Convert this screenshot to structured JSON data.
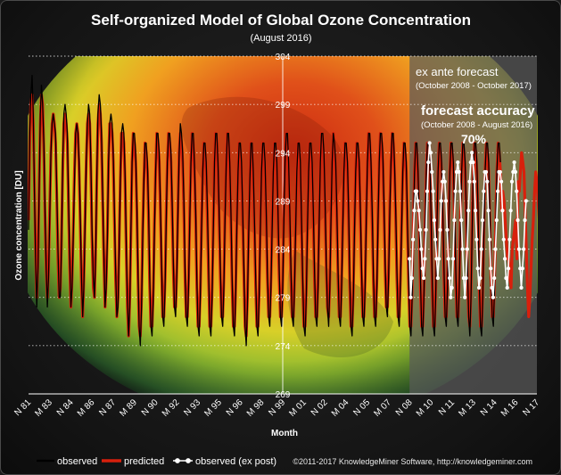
{
  "chart_data": {
    "type": "line",
    "title": "Self-organized Model of Global Ozone Concentration",
    "subtitle": "(August 2016)",
    "xlabel": "Month",
    "ylabel": "Ozone concentration [DU]",
    "ylim": [
      269,
      304
    ],
    "yticks": [
      269,
      274,
      279,
      284,
      289,
      294,
      299,
      304
    ],
    "xlim": [
      1981.85,
      2017.85
    ],
    "x_tick_labels": [
      "N 81",
      "M 83",
      "N 84",
      "M 86",
      "N 87",
      "M 89",
      "N 90",
      "M 92",
      "N 93",
      "M 95",
      "N 96",
      "M 98",
      "N 99",
      "M 01",
      "N 02",
      "M 04",
      "N 05",
      "M 07",
      "N 08",
      "M 10",
      "N 11",
      "M 13",
      "N 14",
      "M 16",
      "N 17"
    ],
    "grid": "horizontal dotted",
    "legend_position": "bottom-left",
    "observed": {
      "name": "observed",
      "color": "#000000",
      "start": 1981.85,
      "step": 0.0833333,
      "values": [
        286,
        296,
        300,
        302,
        298,
        290,
        283,
        278,
        282,
        290,
        298,
        301,
        299,
        295,
        288,
        282,
        278,
        281,
        287,
        294,
        297,
        298,
        297,
        296,
        290,
        284,
        279,
        279,
        284,
        293,
        298,
        299,
        298,
        296,
        289,
        283,
        278,
        280,
        285,
        291,
        296,
        297,
        296,
        293,
        287,
        281,
        277,
        280,
        286,
        293,
        297,
        299,
        298,
        293,
        286,
        281,
        279,
        283,
        291,
        298,
        300,
        299,
        296,
        290,
        284,
        278,
        280,
        285,
        293,
        297,
        298,
        297,
        294,
        288,
        282,
        277,
        278,
        284,
        291,
        296,
        297,
        296,
        292,
        285,
        279,
        275,
        278,
        286,
        293,
        296,
        296,
        294,
        289,
        282,
        276,
        274,
        278,
        285,
        291,
        295,
        295,
        293,
        288,
        281,
        276,
        275,
        279,
        286,
        292,
        296,
        296,
        294,
        289,
        283,
        277,
        276,
        280,
        287,
        293,
        296,
        296,
        294,
        289,
        283,
        278,
        277,
        281,
        288,
        294,
        297,
        296,
        294,
        289,
        282,
        277,
        276,
        280,
        287,
        293,
        296,
        296,
        293,
        288,
        281,
        276,
        275,
        279,
        286,
        292,
        295,
        295,
        293,
        288,
        282,
        276,
        275,
        279,
        286,
        293,
        296,
        296,
        293,
        288,
        282,
        277,
        276,
        280,
        287,
        293,
        296,
        296,
        293,
        288,
        281,
        276,
        275,
        279,
        286,
        292,
        295,
        295,
        293,
        288,
        282,
        276,
        274,
        278,
        285,
        291,
        295,
        295,
        292,
        287,
        281,
        276,
        275,
        279,
        286,
        292,
        295,
        295,
        293,
        288,
        282,
        277,
        276,
        280,
        286,
        292,
        295,
        295,
        293,
        288,
        282,
        277,
        276,
        280,
        287,
        293,
        296,
        296,
        293,
        288,
        282,
        277,
        276,
        280,
        286,
        292,
        295,
        295,
        293,
        287,
        281,
        276,
        275,
        279,
        286,
        292,
        295,
        295,
        293,
        288,
        282,
        277,
        276,
        280,
        287,
        293,
        296,
        296,
        294,
        289,
        283,
        278,
        276,
        280,
        287,
        293,
        296,
        295,
        293,
        288,
        282,
        277,
        276,
        280,
        286,
        292,
        295,
        295,
        293,
        288,
        281,
        276,
        275,
        279,
        286,
        292,
        295,
        295,
        293,
        288,
        282,
        277,
        276,
        280,
        287,
        293,
        296,
        296,
        293,
        288,
        282,
        277,
        276,
        280,
        287,
        293,
        296,
        296,
        294,
        289,
        283,
        278,
        277,
        281,
        288,
        293,
        296,
        296,
        293,
        288,
        282,
        277,
        276,
        280,
        286,
        292,
        295,
        295,
        293,
        287,
        281,
        276,
        275,
        279,
        286,
        292,
        295,
        295,
        292,
        287,
        281,
        276,
        275,
        279,
        286,
        292,
        295,
        295,
        293,
        288,
        281,
        276,
        275,
        279,
        286,
        292,
        295,
        295,
        293,
        288,
        282,
        277,
        276,
        280,
        286,
        292,
        295,
        295,
        293,
        288,
        282,
        277,
        276,
        280,
        286,
        292,
        295,
        295,
        293,
        288,
        282,
        277,
        275,
        279,
        286,
        292,
        295,
        295,
        293,
        288,
        281,
        276,
        275,
        279,
        286,
        292,
        295,
        295,
        293,
        288,
        282,
        277,
        276,
        280,
        286,
        292,
        295,
        295,
        293
      ]
    },
    "predicted": {
      "name": "predicted",
      "color": "#d8200c",
      "start": 1981.85,
      "step": 0.0833333,
      "values": [
        287,
        295,
        299,
        300,
        297,
        291,
        284,
        279,
        283,
        291,
        297,
        300,
        299,
        294,
        287,
        282,
        279,
        282,
        288,
        294,
        297,
        298,
        297,
        295,
        289,
        283,
        279,
        280,
        285,
        292,
        297,
        298,
        297,
        295,
        288,
        282,
        278,
        281,
        286,
        292,
        296,
        297,
        296,
        292,
        286,
        280,
        277,
        281,
        287,
        293,
        297,
        298,
        297,
        292,
        285,
        280,
        279,
        284,
        291,
        297,
        299,
        298,
        295,
        289,
        283,
        278,
        281,
        286,
        293,
        297,
        297,
        296,
        293,
        287,
        281,
        277,
        279,
        285,
        291,
        296,
        296,
        295,
        291,
        284,
        278,
        275,
        279,
        286,
        293,
        296,
        295,
        293,
        288,
        281,
        276,
        275,
        279,
        286,
        291,
        295,
        294,
        292,
        287,
        280,
        276,
        276,
        280,
        287,
        292,
        296,
        295,
        293,
        288,
        282,
        277,
        277,
        281,
        288,
        293,
        296,
        295,
        293,
        288,
        282,
        278,
        278,
        282,
        289,
        294,
        296,
        295,
        293,
        288,
        281,
        277,
        277,
        281,
        288,
        293,
        296,
        295,
        292,
        287,
        280,
        276,
        276,
        280,
        287,
        292,
        295,
        294,
        292,
        287,
        281,
        276,
        276,
        280,
        287,
        293,
        296,
        295,
        292,
        287,
        281,
        277,
        277,
        281,
        288,
        293,
        296,
        295,
        292,
        287,
        280,
        276,
        276,
        280,
        287,
        292,
        295,
        294,
        292,
        287,
        281,
        276,
        275,
        279,
        286,
        291,
        295,
        294,
        291,
        286,
        280,
        276,
        276,
        280,
        287,
        292,
        295,
        294,
        292,
        287,
        281,
        277,
        277,
        281,
        287,
        292,
        295,
        294,
        292,
        287,
        281,
        277,
        277,
        281,
        288,
        293,
        296,
        295,
        292,
        287,
        281,
        277,
        277,
        281,
        287,
        292,
        295,
        294,
        292,
        286,
        280,
        276,
        276,
        280,
        287,
        292,
        295,
        294,
        292,
        287,
        281,
        277,
        277,
        281,
        288,
        293,
        296,
        295,
        293,
        288,
        282,
        278,
        277,
        281,
        288,
        293,
        296,
        294,
        292,
        287,
        281,
        277,
        277,
        281,
        287,
        292,
        295,
        294,
        292,
        287,
        280,
        276,
        276,
        280,
        287,
        292,
        295,
        294,
        292,
        287,
        281,
        277,
        277,
        281,
        288,
        293,
        296,
        295,
        292,
        287,
        281,
        277,
        277,
        281,
        288,
        293,
        296,
        295,
        293,
        288,
        282,
        278,
        278,
        282,
        289,
        293,
        296,
        295,
        292,
        287,
        281,
        277,
        277,
        281,
        287,
        292,
        295,
        294,
        292,
        286,
        280,
        276,
        276,
        280,
        287,
        292,
        295,
        294,
        291,
        286,
        280,
        276,
        276,
        280,
        287,
        292,
        295,
        294,
        292,
        287,
        280,
        276,
        276,
        280,
        287,
        292,
        295,
        294,
        292,
        287,
        281,
        277,
        277,
        281,
        287,
        292,
        295,
        294,
        292,
        287,
        281,
        277,
        277,
        281,
        287,
        292,
        295,
        294,
        292,
        287,
        281,
        277,
        276,
        280,
        287,
        292,
        295,
        294,
        292,
        287,
        280,
        276,
        276,
        280,
        287,
        292,
        295,
        294,
        292,
        287,
        281,
        277,
        277,
        281,
        287,
        292,
        295,
        294,
        292,
        288,
        290,
        289,
        287,
        285,
        283,
        283,
        281,
        280,
        284,
        285,
        286,
        287,
        283,
        291,
        290,
        292,
        294,
        293,
        292,
        288,
        284,
        280,
        277,
        279,
        282,
        285,
        287,
        290,
        292,
        291,
        289,
        287,
        283,
        280,
        282,
        284,
        286,
        289,
        292,
        290,
        288,
        286,
        284,
        281,
        282,
        284,
        287,
        291,
        293,
        292,
        290,
        286,
        283,
        280,
        278,
        283,
        285,
        288,
        291,
        292,
        291,
        289,
        286,
        282,
        279,
        281,
        283,
        286,
        290,
        292,
        291,
        288,
        285,
        281,
        278,
        278,
        282,
        285,
        288,
        289,
        289,
        287,
        284,
        280,
        277,
        280,
        283,
        287,
        290,
        291,
        290,
        288,
        284,
        281,
        279,
        282,
        285,
        288,
        290,
        291,
        290,
        287,
        283,
        280,
        279,
        283,
        287,
        289,
        290,
        289,
        287,
        284,
        280,
        278,
        280,
        283,
        286,
        288,
        289,
        288,
        286,
        283,
        279,
        277,
        279,
        283,
        286,
        289,
        290,
        289,
        287,
        282,
        278,
        276,
        279,
        283,
        287,
        289,
        290
      ]
    },
    "observed_ex_post": {
      "name": "observed (ex post)",
      "color": "#ffffff",
      "marker": "circle",
      "start": 2008.83,
      "step": 0.0833333,
      "values": [
        283,
        279,
        281,
        285,
        288,
        290,
        290,
        289,
        288,
        286,
        284,
        282,
        281,
        283,
        286,
        290,
        293,
        295,
        294,
        292,
        290,
        287,
        285,
        283,
        281,
        283,
        286,
        289,
        291,
        292,
        291,
        289,
        286,
        283,
        281,
        279,
        280,
        283,
        287,
        290,
        292,
        293,
        292,
        290,
        287,
        284,
        281,
        279,
        281,
        284,
        288,
        291,
        293,
        294,
        293,
        291,
        288,
        285,
        282,
        280,
        281,
        284,
        287,
        290,
        292,
        292,
        291,
        288,
        285,
        282,
        280,
        279,
        281,
        284,
        287,
        290,
        292,
        292,
        291,
        288,
        285,
        283,
        281,
        280,
        282,
        285,
        288,
        291,
        292,
        293,
        292,
        290,
        287,
        284,
        282,
        280,
        282,
        284,
        287,
        289
      ]
    },
    "forecast_label": "ex ante forecast",
    "forecast_period": "(October 2008 - October 2017)",
    "accuracy_label": "forecast accuracy",
    "accuracy_period": "(October 2008 - August 2016)",
    "accuracy_value": "70%"
  },
  "copyright": "©2011-2017 KnowledgeMiner Software, http://knowledgeminer.com",
  "colors": {
    "observed": "#000000",
    "predicted": "#d8200c",
    "ex_post": "#ffffff",
    "background": "#1b1b1b"
  }
}
